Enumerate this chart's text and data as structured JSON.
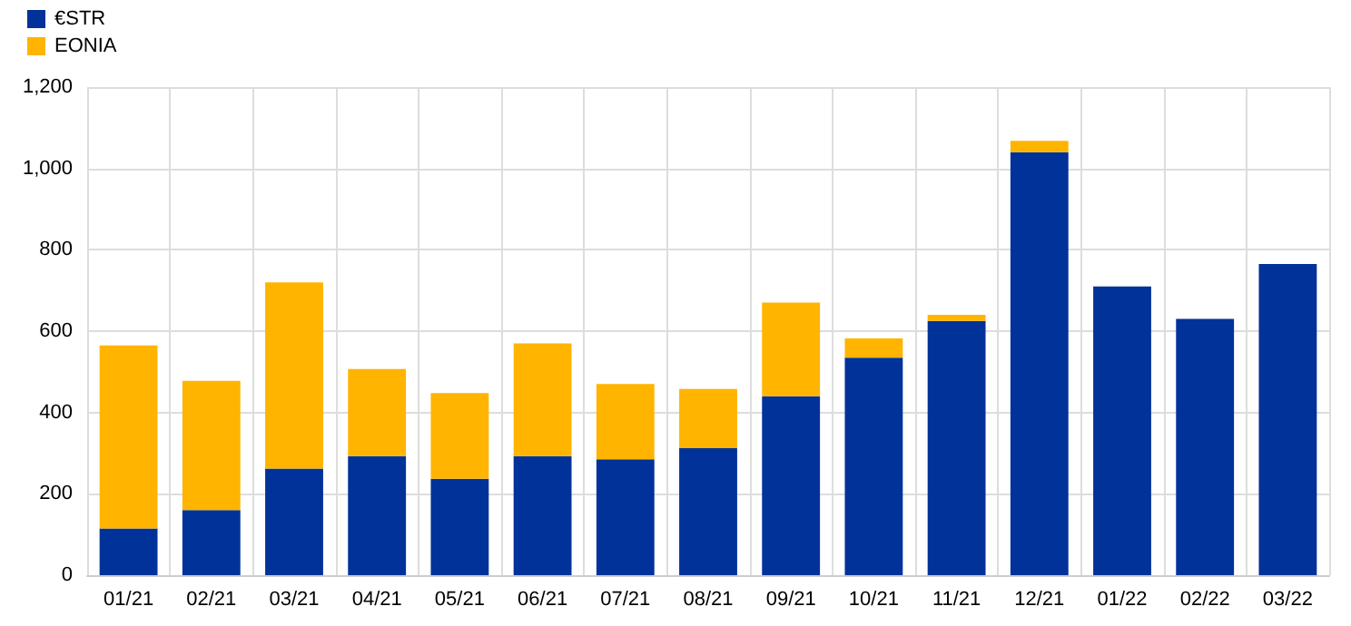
{
  "chart_data": {
    "type": "bar",
    "stacked": true,
    "categories": [
      "01/21",
      "02/21",
      "03/21",
      "04/21",
      "05/21",
      "06/21",
      "07/21",
      "08/21",
      "09/21",
      "10/21",
      "11/21",
      "12/21",
      "01/22",
      "02/22",
      "03/22"
    ],
    "series": [
      {
        "name": "€STR",
        "color": "#003299",
        "values": [
          115,
          160,
          262,
          293,
          237,
          293,
          285,
          312,
          440,
          535,
          625,
          1040,
          710,
          630,
          765
        ]
      },
      {
        "name": "EONIA",
        "color": "#ffb400",
        "values": [
          450,
          318,
          458,
          214,
          211,
          277,
          185,
          146,
          230,
          47,
          15,
          28,
          0,
          0,
          0
        ]
      }
    ],
    "ylim": [
      0,
      1200
    ],
    "yticks": [
      0,
      200,
      400,
      600,
      800,
      {
        "value": 1000,
        "label": "1,000"
      },
      {
        "value": 1200,
        "label": "1,200"
      }
    ],
    "grid": true,
    "legend": "top left"
  }
}
